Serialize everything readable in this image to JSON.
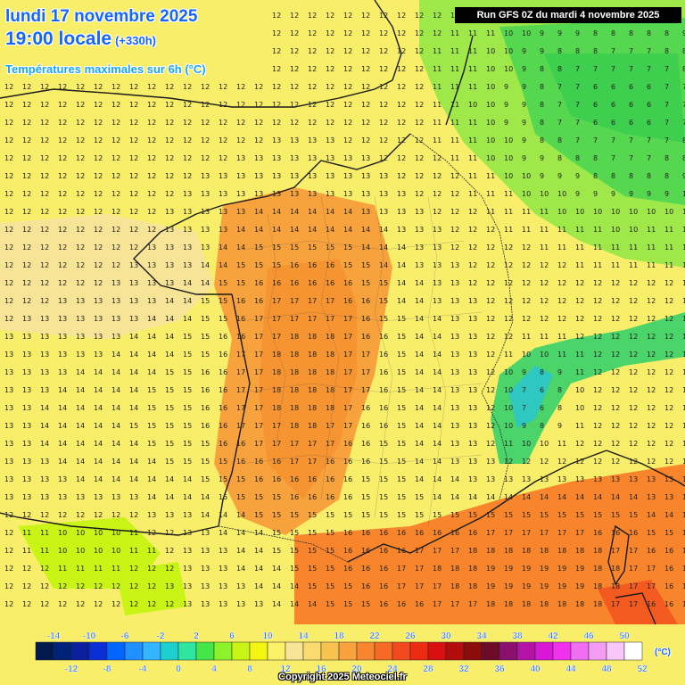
{
  "header": {
    "date_line": "lundi 17 novembre 2025",
    "time_line": "19:00 locale",
    "lead_time": "(+330h)",
    "variable": "Températures maximales sur 6h (°C)",
    "run_info": "Run GFS 0Z du mardi 4 novembre 2025"
  },
  "legend": {
    "unit": "(°C)",
    "top_labels": [
      "-14",
      "-10",
      "-6",
      "-2",
      "2",
      "6",
      "10",
      "14",
      "18",
      "22",
      "26",
      "30",
      "34",
      "38",
      "42",
      "46",
      "50"
    ],
    "bottom_labels": [
      "-12",
      "-8",
      "-4",
      "0",
      "4",
      "8",
      "12",
      "16",
      "20",
      "24",
      "28",
      "32",
      "36",
      "40",
      "44",
      "48",
      "52"
    ],
    "colors": [
      "#001a4d",
      "#00237a",
      "#0a1f9c",
      "#0b2fd6",
      "#0066ff",
      "#1e90ff",
      "#33b5ff",
      "#1ecfcf",
      "#2fe6a0",
      "#45e64a",
      "#8cf22a",
      "#c8f515",
      "#f4f510",
      "#fbf066",
      "#f7e496",
      "#fadc6e",
      "#f8c24e",
      "#f7a23c",
      "#f7862e",
      "#f56a24",
      "#f24a1c",
      "#ee2a12",
      "#d81010",
      "#b20c0c",
      "#8c0b0b",
      "#6e0a2a",
      "#8a0f6e",
      "#b414a6",
      "#d818d6",
      "#f032ee",
      "#f06ef2",
      "#f29cf4",
      "#f7c8f8",
      "#ffffff"
    ]
  },
  "copyright": "Copyright 2025 Meteociel.fr"
}
